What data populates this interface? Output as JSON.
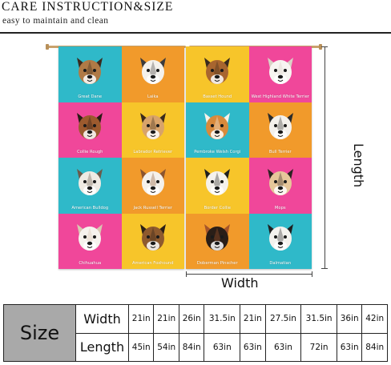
{
  "header": {
    "title": "CARE INSTRUCTION&SIZE",
    "subtitle": "easy to maintain and clean"
  },
  "curtains": {
    "left_panel": [
      {
        "label": "Great Dane",
        "bg": "#2fb9c9",
        "face": "#b07a46",
        "dark": "#3a2a1e"
      },
      {
        "label": "Laika",
        "bg": "#f19a2b",
        "face": "#f4f1ec",
        "dark": "#3b3a3c"
      },
      {
        "label": "Collie Rough",
        "bg": "#f0479a",
        "face": "#9c5a2e",
        "dark": "#2a1c15"
      },
      {
        "label": "Labrador Retriever",
        "bg": "#f7c52a",
        "face": "#d8a36a",
        "dark": "#3a2a1e"
      },
      {
        "label": "American Bulldog",
        "bg": "#2fb9c9",
        "face": "#efebe4",
        "dark": "#6b5a4a"
      },
      {
        "label": "Jack Russell Terrier",
        "bg": "#f19a2b",
        "face": "#f4f1ec",
        "dark": "#8b5530"
      },
      {
        "label": "Chihuahua",
        "bg": "#f0479a",
        "face": "#f6f2ed",
        "dark": "#d9c7b2"
      },
      {
        "label": "American Foxhound",
        "bg": "#f7c52a",
        "face": "#8e5a2e",
        "dark": "#2b1f17"
      }
    ],
    "right_panel": [
      {
        "label": "Basset Hound",
        "bg": "#f7c52a",
        "face": "#a8652f",
        "dark": "#3a2a1e"
      },
      {
        "label": "West Highland White Terrier",
        "bg": "#f0479a",
        "face": "#f7f5f1",
        "dark": "#d9d2c6"
      },
      {
        "label": "Pembroke Welsh Corgi",
        "bg": "#2fb9c9",
        "face": "#d88a3c",
        "dark": "#f7f2ea"
      },
      {
        "label": "Bull Terrier",
        "bg": "#f19a2b",
        "face": "#f4f1ec",
        "dark": "#2b2b2b"
      },
      {
        "label": "Border Collie",
        "bg": "#f7c52a",
        "face": "#f5f2ec",
        "dark": "#1f1f1f"
      },
      {
        "label": "Mops",
        "bg": "#f0479a",
        "face": "#e6c79a",
        "dark": "#2b2321"
      },
      {
        "label": "Doberman Pinscher",
        "bg": "#f19a2b",
        "face": "#2a1e17",
        "dark": "#a5552a"
      },
      {
        "label": "Dalmatian",
        "bg": "#2fb9c9",
        "face": "#f4f2ee",
        "dark": "#1f1f1f"
      }
    ]
  },
  "dimensions": {
    "length_label": "Length",
    "width_label": "Width"
  },
  "size_table": {
    "header": "Size",
    "width_label": "Width",
    "length_label": "Length",
    "widths": [
      "21in",
      "21in",
      "26in",
      "31.5in",
      "21in",
      "27.5in",
      "31.5in",
      "36in",
      "42in"
    ],
    "lengths": [
      "45in",
      "54in",
      "84in",
      "63in",
      "63in",
      "63in",
      "72in",
      "63in",
      "84in"
    ]
  },
  "colors": {
    "turquoise": "#2fb9c9",
    "orange": "#f19a2b",
    "pink": "#f0479a",
    "yellow": "#f7c52a",
    "size_header_bg": "#a9a9a9",
    "rod": "#c9a26b"
  }
}
